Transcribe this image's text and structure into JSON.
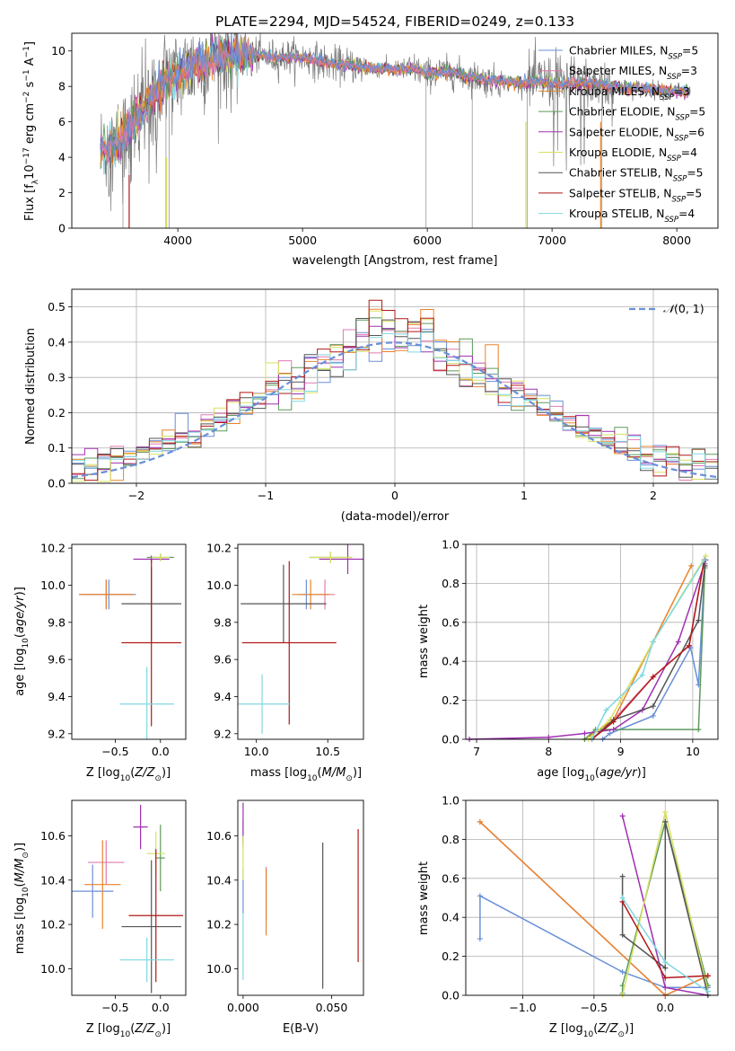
{
  "figure_title": "PLATE=2294, MJD=54524, FIBERID=0249, z=0.133",
  "legend_names": [
    "Chabrier MILES, N_SSP=5",
    "Salpeter MILES, N_SSP=3",
    "Kroupa MILES, N_SSP=3",
    "Chabrier ELODIE, N_SSP=5",
    "Salpeter ELODIE, N_SSP=6",
    "Kroupa ELODIE, N_SSP=4",
    "Chabrier STELIB, N_SSP=5",
    "Salpeter STELIB, N_SSP=5",
    "Kroupa STELIB, N_SSP=4"
  ],
  "colors": [
    "#6a8fd8",
    "#e07ab0",
    "#e8832a",
    "#5c9a5c",
    "#a030b0",
    "#d8e060",
    "#555555",
    "#b01818",
    "#80d8e0"
  ],
  "chart_data": [
    {
      "type": "line",
      "title": "PLATE=2294, MJD=54524, FIBERID=0249, z=0.133",
      "xlabel": "wavelength [Angstrom, rest frame]",
      "ylabel": "Flux [f_λ 10^-17 erg cm^-2 s^-1 A^-1]",
      "xlim": [
        3150,
        8330
      ],
      "ylim": [
        0,
        11
      ],
      "xticks": [
        "4000",
        "5000",
        "6000",
        "7000",
        "8000"
      ],
      "yticks": [
        "0",
        "2",
        "4",
        "6",
        "8",
        "10"
      ],
      "grid": false,
      "legend": "top-right",
      "series_approx": {
        "x": [
          3380,
          3500,
          3600,
          3700,
          3800,
          3900,
          4000,
          4100,
          4200,
          4300,
          4400,
          4500,
          4600,
          4700,
          4800,
          4900,
          5000,
          5100,
          5200,
          5300,
          5400,
          5500,
          5600,
          5700,
          5800,
          5900,
          6000,
          6100,
          6200,
          6300,
          6400,
          6500,
          6600,
          6700,
          6800,
          6900,
          7000,
          7100,
          7200,
          7300,
          7400,
          7500,
          7600,
          7700,
          7800,
          7900,
          8000,
          8100
        ],
        "y": [
          4.5,
          4.7,
          5.5,
          6.6,
          7.6,
          8.3,
          8.6,
          9.1,
          9.4,
          9.6,
          9.7,
          9.8,
          9.8,
          9.7,
          9.6,
          9.7,
          9.6,
          9.5,
          9.3,
          9.2,
          9.2,
          9.0,
          9.0,
          9.0,
          8.9,
          9.0,
          8.7,
          8.8,
          8.8,
          8.6,
          8.5,
          8.3,
          8.3,
          8.2,
          8.2,
          8.3,
          8.2,
          8.1,
          8.2,
          8.2,
          8.1,
          8.0,
          7.9,
          7.9,
          7.8,
          7.8,
          7.7,
          7.7
        ]
      }
    },
    {
      "type": "step",
      "xlabel": "(data-model)/error",
      "ylabel": "Normed distribution",
      "xlim": [
        -2.5,
        2.5
      ],
      "ylim": [
        0,
        0.55
      ],
      "xticks": [
        "−2",
        "−1",
        "0",
        "1",
        "2"
      ],
      "yticks": [
        "0.0",
        "0.1",
        "0.2",
        "0.3",
        "0.4",
        "0.5"
      ],
      "grid": true,
      "legend": "top-right",
      "reference": "N(0,1)",
      "bin_width": 0.1
    },
    {
      "type": "scatter",
      "xlabel": "Z [log10(Z/Z⊙)]",
      "ylabel": "age  [log10(age/yr)]",
      "xlim": [
        -0.98,
        0.28
      ],
      "ylim": [
        9.17,
        10.22
      ],
      "xticks": [
        "−0.5",
        "0.0"
      ],
      "yticks": [
        "9.2",
        "9.4",
        "9.6",
        "9.8",
        "10.0",
        "10.2"
      ],
      "points": [
        {
          "s": 0,
          "x": -0.57,
          "y": 9.95,
          "xe": 0.3,
          "ye": 0.08
        },
        {
          "s": 1,
          "x": -0.6,
          "y": 9.95,
          "xe": 0.3,
          "ye": 0.08
        },
        {
          "s": 2,
          "x": -0.6,
          "y": 9.95,
          "xe": 0.3,
          "ye": 0.08
        },
        {
          "s": 3,
          "x": 0.0,
          "y": 10.15,
          "xe": 0.15,
          "ye": 0.02
        },
        {
          "s": 4,
          "x": -0.1,
          "y": 10.14,
          "xe": 0.2,
          "ye": 0.02
        },
        {
          "s": 5,
          "x": 0.0,
          "y": 10.15,
          "xe": 0.1,
          "ye": 0.02
        },
        {
          "s": 6,
          "x": -0.1,
          "y": 9.9,
          "xe": 0.33,
          "ye": 0.2
        },
        {
          "s": 7,
          "x": -0.1,
          "y": 9.69,
          "xe": 0.33,
          "ye": 0.45
        },
        {
          "s": 8,
          "x": -0.15,
          "y": 9.36,
          "xe": 0.3,
          "ye": 0.2
        }
      ]
    },
    {
      "type": "scatter",
      "xlabel": "mass [log10(M/M⊙)]",
      "ylabel": "",
      "xlim": [
        9.87,
        10.75
      ],
      "ylim": [
        9.17,
        10.22
      ],
      "xticks": [
        "10.0",
        "10.5"
      ],
      "yticks": [
        "9.2",
        "9.4",
        "9.6",
        "9.8",
        "10.0",
        "10.2"
      ],
      "points": [
        {
          "s": 0,
          "x": 10.35,
          "y": 9.95,
          "xe": 0.05,
          "ye": 0.08
        },
        {
          "s": 1,
          "x": 10.48,
          "y": 9.95,
          "xe": 0.07,
          "ye": 0.08
        },
        {
          "s": 2,
          "x": 10.38,
          "y": 9.95,
          "xe": 0.13,
          "ye": 0.08
        },
        {
          "s": 3,
          "x": 10.52,
          "y": 10.15,
          "xe": 0.15,
          "ye": 0.03
        },
        {
          "s": 4,
          "x": 10.64,
          "y": 10.14,
          "xe": 0.2,
          "ye": 0.08
        },
        {
          "s": 5,
          "x": 10.52,
          "y": 10.15,
          "xe": 0.15,
          "ye": 0.03
        },
        {
          "s": 6,
          "x": 10.19,
          "y": 9.9,
          "xe": 0.3,
          "ye": 0.21
        },
        {
          "s": 7,
          "x": 10.23,
          "y": 9.69,
          "xe": 0.33,
          "ye": 0.44
        },
        {
          "s": 8,
          "x": 10.04,
          "y": 9.36,
          "xe": 0.2,
          "ye": 0.16
        }
      ]
    },
    {
      "type": "line",
      "xlabel": "age  [log10(age/yr)]",
      "ylabel": "mass weight",
      "xlim": [
        6.85,
        10.35
      ],
      "ylim": [
        0,
        1
      ],
      "xticks": [
        "7",
        "8",
        "9",
        "10"
      ],
      "yticks": [
        "0.0",
        "0.2",
        "0.4",
        "0.6",
        "0.8",
        "1.0"
      ],
      "grid": true
    },
    {
      "type": "scatter",
      "xlabel": "Z [log10(Z/Z⊙)]",
      "ylabel": "mass [log10(M/M⊙)]",
      "xlim": [
        -0.98,
        0.28
      ],
      "ylim": [
        9.88,
        10.76
      ],
      "xticks": [
        "−0.5",
        "0.0"
      ],
      "yticks": [
        "10.0",
        "10.2",
        "10.4",
        "10.6"
      ],
      "points": [
        {
          "s": 0,
          "x": -0.75,
          "y": 10.35,
          "xe": 0.23,
          "ye": 0.12
        },
        {
          "s": 1,
          "x": -0.6,
          "y": 10.48,
          "xe": 0.2,
          "ye": 0.1
        },
        {
          "s": 2,
          "x": -0.64,
          "y": 10.38,
          "xe": 0.2,
          "ye": 0.2
        },
        {
          "s": 3,
          "x": 0.0,
          "y": 10.5,
          "xe": 0.05,
          "ye": 0.15
        },
        {
          "s": 4,
          "x": -0.22,
          "y": 10.64,
          "xe": 0.08,
          "ye": 0.1
        },
        {
          "s": 5,
          "x": -0.05,
          "y": 10.52,
          "xe": 0.1,
          "ye": 0.1
        },
        {
          "s": 6,
          "x": -0.1,
          "y": 10.19,
          "xe": 0.33,
          "ye": 0.3
        },
        {
          "s": 7,
          "x": -0.05,
          "y": 10.24,
          "xe": 0.3,
          "ye": 0.3
        },
        {
          "s": 8,
          "x": -0.15,
          "y": 10.04,
          "xe": 0.3,
          "ye": 0.1
        }
      ]
    },
    {
      "type": "scatter",
      "xlabel": "E(B-V)",
      "ylabel": "",
      "xlim": [
        -0.003,
        0.068
      ],
      "ylim": [
        9.88,
        10.76
      ],
      "xticks": [
        "0.000",
        "0.050"
      ],
      "yticks": [
        "10.0",
        "10.2",
        "10.4",
        "10.6"
      ],
      "points": [
        {
          "s": 0,
          "x": 0.0,
          "y": 10.35,
          "xe": 0,
          "ye": 0.1
        },
        {
          "s": 1,
          "x": 0.013,
          "y": 10.34,
          "xe": 0,
          "ye": 0.12
        },
        {
          "s": 2,
          "x": 0.013,
          "y": 10.3,
          "xe": 0,
          "ye": 0.15
        },
        {
          "s": 3,
          "x": 0.0,
          "y": 10.62,
          "xe": 0,
          "ye": 0.05
        },
        {
          "s": 4,
          "x": 0.0,
          "y": 10.65,
          "xe": 0,
          "ye": 0.1
        },
        {
          "s": 5,
          "x": 0.0,
          "y": 10.5,
          "xe": 0,
          "ye": 0.1
        },
        {
          "s": 6,
          "x": 0.045,
          "y": 10.24,
          "xe": 0,
          "ye": 0.33
        },
        {
          "s": 7,
          "x": 0.065,
          "y": 10.33,
          "xe": 0,
          "ye": 0.3
        },
        {
          "s": 8,
          "x": 0.0,
          "y": 10.1,
          "xe": 0,
          "ye": 0.15
        }
      ]
    },
    {
      "type": "line",
      "xlabel": "Z [log10(Z/Z⊙)]",
      "ylabel": "mass weight",
      "xlim": [
        -1.4,
        0.37
      ],
      "ylim": [
        0,
        1
      ],
      "xticks": [
        "−1.0",
        "−0.5",
        "0.0"
      ],
      "yticks": [
        "0.0",
        "0.2",
        "0.4",
        "0.6",
        "0.8",
        "1.0"
      ],
      "grid": true
    }
  ]
}
